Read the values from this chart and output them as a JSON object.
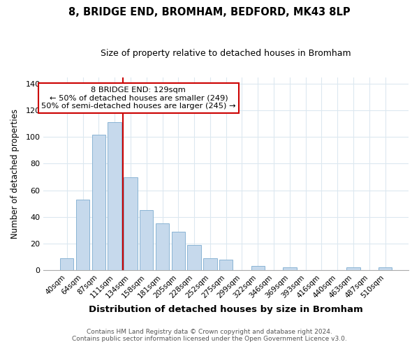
{
  "title": "8, BRIDGE END, BROMHAM, BEDFORD, MK43 8LP",
  "subtitle": "Size of property relative to detached houses in Bromham",
  "xlabel": "Distribution of detached houses by size in Bromham",
  "ylabel": "Number of detached properties",
  "bar_labels": [
    "40sqm",
    "64sqm",
    "87sqm",
    "111sqm",
    "134sqm",
    "158sqm",
    "181sqm",
    "205sqm",
    "228sqm",
    "252sqm",
    "275sqm",
    "299sqm",
    "322sqm",
    "346sqm",
    "369sqm",
    "393sqm",
    "416sqm",
    "440sqm",
    "463sqm",
    "487sqm",
    "510sqm"
  ],
  "bar_values": [
    9,
    53,
    102,
    111,
    70,
    45,
    35,
    29,
    19,
    9,
    8,
    0,
    3,
    0,
    2,
    0,
    0,
    0,
    2,
    0,
    2
  ],
  "bar_color": "#c6d9ec",
  "bar_edge_color": "#8ab4d4",
  "vline_color": "#cc0000",
  "vline_x": 3.5,
  "ylim": [
    0,
    145
  ],
  "yticks": [
    0,
    20,
    40,
    60,
    80,
    100,
    120,
    140
  ],
  "annotation_title": "8 BRIDGE END: 129sqm",
  "annotation_line1": "← 50% of detached houses are smaller (249)",
  "annotation_line2": "50% of semi-detached houses are larger (245) →",
  "annotation_box_color": "#ffffff",
  "annotation_box_edge": "#cc0000",
  "footer1": "Contains HM Land Registry data © Crown copyright and database right 2024.",
  "footer2": "Contains public sector information licensed under the Open Government Licence v3.0.",
  "background_color": "#ffffff",
  "grid_color": "#dce8f0",
  "title_fontsize": 10.5,
  "subtitle_fontsize": 9
}
